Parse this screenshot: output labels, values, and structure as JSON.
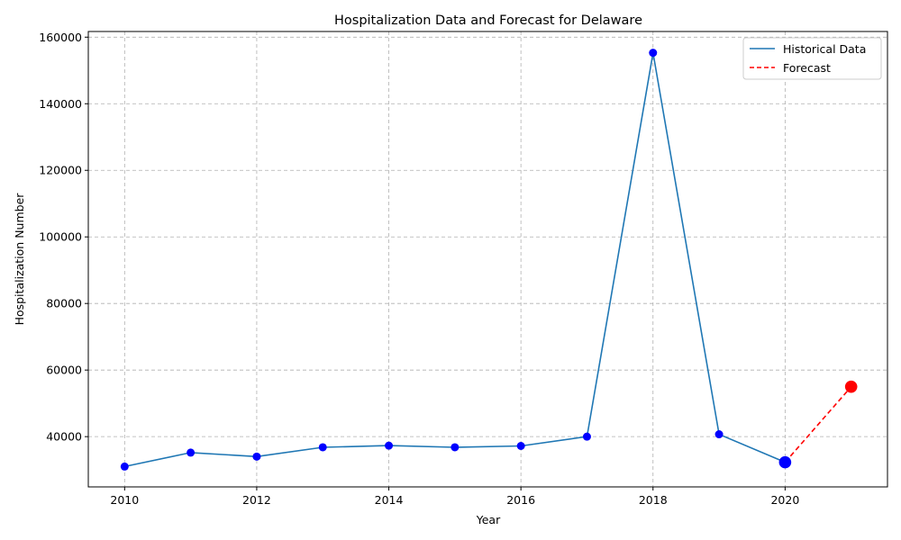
{
  "chart_data": {
    "type": "line",
    "title": "Hospitalization Data and Forecast for Delaware",
    "xlabel": "Year",
    "ylabel": "Hospitalization Number",
    "xlim": [
      2009.45,
      2021.55
    ],
    "ylim": [
      24900,
      161700
    ],
    "xticks": [
      2010,
      2012,
      2014,
      2016,
      2018,
      2020
    ],
    "yticks": [
      40000,
      60000,
      80000,
      100000,
      120000,
      140000,
      160000
    ],
    "grid": true,
    "legend_position": "top-right",
    "series": [
      {
        "name": "Historical Data",
        "color": "#1f77b4",
        "marker_color": "#0000ff",
        "style": "solid",
        "x": [
          2010,
          2011,
          2012,
          2013,
          2014,
          2015,
          2016,
          2017,
          2018,
          2019,
          2020
        ],
        "values": [
          31000,
          35200,
          34000,
          36800,
          37300,
          36800,
          37200,
          40000,
          155300,
          40700,
          32300
        ]
      },
      {
        "name": "Forecast",
        "color": "#ff0000",
        "marker_color": "#ff0000",
        "style": "dashed",
        "x": [
          2020,
          2021
        ],
        "values": [
          32300,
          55000
        ]
      }
    ],
    "highlight_points": [
      {
        "x": 2020,
        "y": 32300,
        "color": "#0000ff"
      },
      {
        "x": 2021,
        "y": 55000,
        "color": "#ff0000"
      }
    ]
  }
}
